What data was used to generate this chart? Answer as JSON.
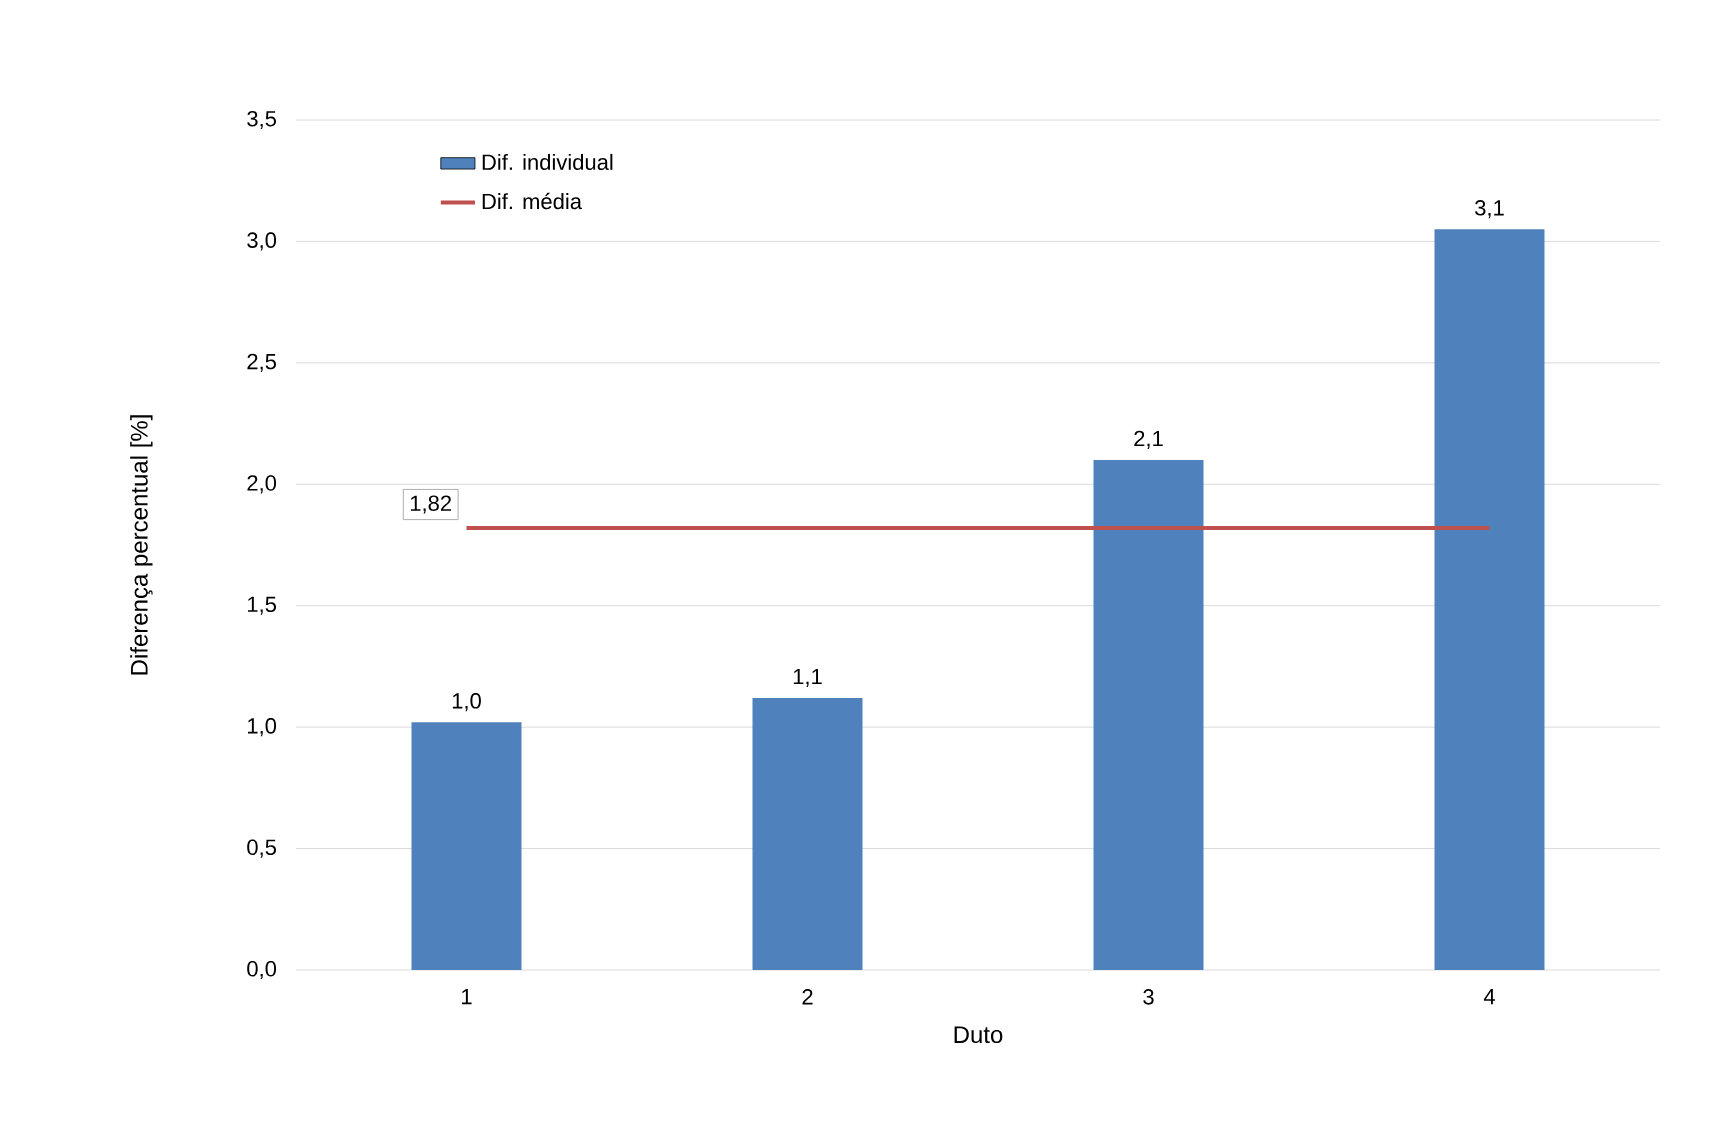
{
  "chart_data": {
    "type": "bar",
    "xlabel": "Duto",
    "ylabel": "Diferença percentual [%]",
    "categories": [
      "1",
      "2",
      "3",
      "4"
    ],
    "series": [
      {
        "name": "Dif. individual",
        "color": "#4f81bd",
        "values": [
          1.02,
          1.12,
          2.1,
          3.05
        ],
        "value_labels": [
          "1,0",
          "1,1",
          "2,1",
          "3,1"
        ]
      },
      {
        "name": "Dif. média",
        "type": "line",
        "color": "#c0504d",
        "values": [
          1.82,
          1.82,
          1.82,
          1.82
        ],
        "value_labels": [
          "1,82",
          null,
          null,
          null
        ]
      }
    ],
    "ylim": [
      0,
      3.5
    ],
    "yticks": [
      {
        "value": 0,
        "label": "0,0"
      },
      {
        "value": 0.5,
        "label": "0,5"
      },
      {
        "value": 1,
        "label": "1,0"
      },
      {
        "value": 1.5,
        "label": "1,5"
      },
      {
        "value": 2,
        "label": "2,0"
      },
      {
        "value": 2.5,
        "label": "2,5"
      },
      {
        "value": 3,
        "label": "3,0"
      },
      {
        "value": 3.5,
        "label": "3,5"
      }
    ],
    "grid": "y",
    "legend": "top left"
  }
}
